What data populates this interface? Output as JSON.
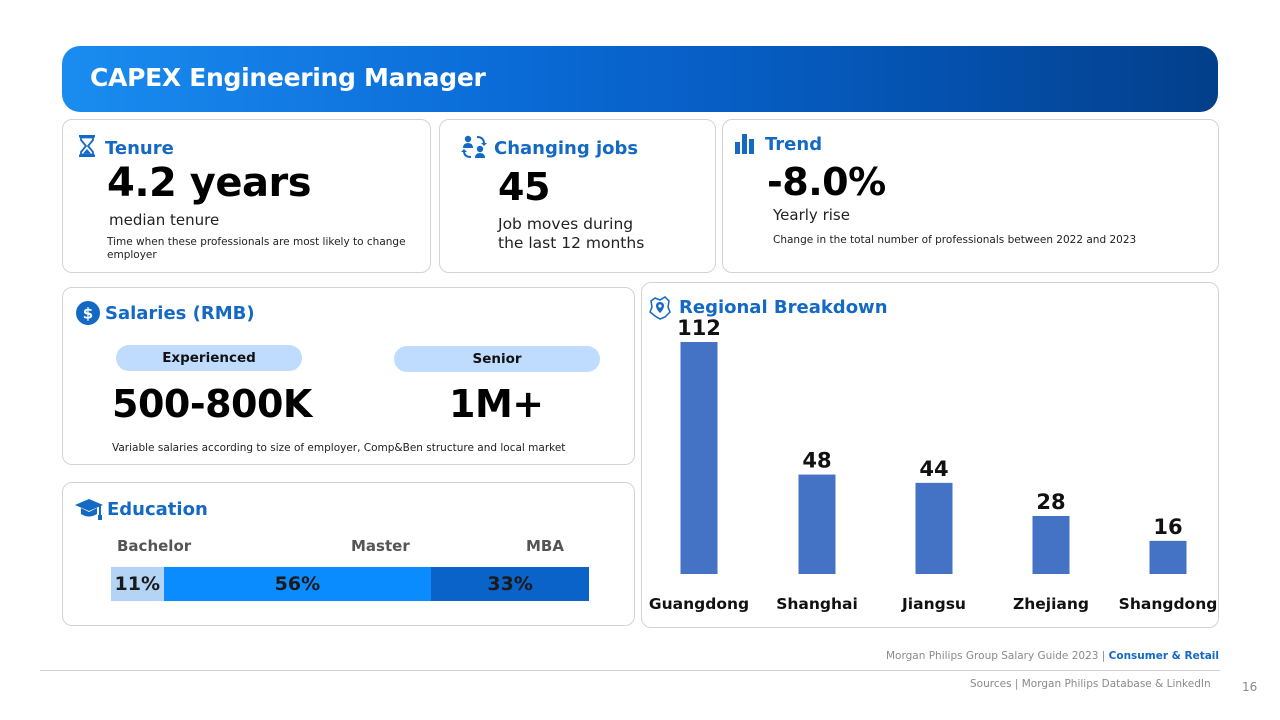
{
  "header": {
    "title": "CAPEX Engineering Manager"
  },
  "tenure": {
    "title": "Tenure",
    "value": "4.2 years",
    "label": "median tenure",
    "note": "Time when these professionals are most likely to  change employer",
    "icon": "hourglass-icon"
  },
  "changing_jobs": {
    "title": "Changing jobs",
    "value": "45",
    "label_line1": "Job moves during",
    "label_line2": "the last 12 months",
    "icon": "people-swap-icon"
  },
  "trend": {
    "title": "Trend",
    "value": "-8.0%",
    "label": "Yearly rise",
    "note": "Change in the total number of professionals between 2022 and 2023",
    "icon": "bar-chart-icon"
  },
  "salaries": {
    "title": "Salaries (RMB)",
    "levels": [
      {
        "label": "Experienced",
        "value": "500-800K"
      },
      {
        "label": "Senior",
        "value": "1M+"
      }
    ],
    "note": "Variable salaries according to size of employer, Comp&Ben structure and local market",
    "icon": "dollar-icon"
  },
  "education": {
    "title": "Education",
    "icon": "graduation-cap-icon",
    "segments": [
      {
        "label": "Bachelor",
        "percent": 11,
        "text": "11%",
        "color": "#b3d4f5"
      },
      {
        "label": "Master",
        "percent": 56,
        "text": "56%",
        "color": "#0a8cff"
      },
      {
        "label": "MBA",
        "percent": 33,
        "text": "33%",
        "color": "#0a63c9"
      }
    ]
  },
  "regional": {
    "title": "Regional Breakdown",
    "icon": "map-pin-icon"
  },
  "chart_data": {
    "type": "bar",
    "title": "Regional Breakdown",
    "categories": [
      "Guangdong",
      "Shanghai",
      "Jiangsu",
      "Zhejiang",
      "Shangdong"
    ],
    "values": [
      112,
      48,
      44,
      28,
      16
    ],
    "ylim": [
      0,
      112
    ],
    "grid": false,
    "bar_color": "#4472c4"
  },
  "footer": {
    "guide": "Morgan Philips Group Salary Guide 2023 |",
    "sector": "Consumer & Retail",
    "sources": "Sources | Morgan Philips Database & LinkedIn",
    "page": "16"
  }
}
